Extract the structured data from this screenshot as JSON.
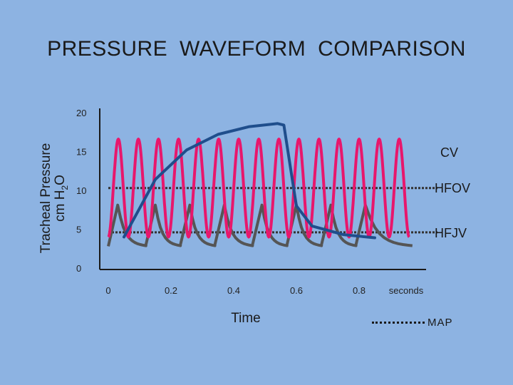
{
  "title": "PRESSURE  WAVEFORM  COMPARISON",
  "ylabel_line1": "Tracheal Pressure",
  "ylabel_line2_prefix": "cm  H",
  "ylabel_sub": "2",
  "ylabel_suffix": "O",
  "xlabel": "Time",
  "legend_map": "MAP",
  "colors": {
    "background": "#8db3e2",
    "cv": "#1f4e8c",
    "hfov": "#e8176c",
    "hfjv": "#555555",
    "map": "#333333"
  },
  "chart_data": {
    "type": "line",
    "title": "PRESSURE  WAVEFORM  COMPARISON",
    "xlabel": "Time",
    "ylabel": "Tracheal Pressure cm H2O",
    "x_ticks": [
      "0",
      "0.2",
      "0.4",
      "0.6",
      "0.8",
      "seconds"
    ],
    "y_ticks": [
      "0",
      "5",
      "10",
      "15",
      "20"
    ],
    "xlim": [
      0,
      1.0
    ],
    "ylim": [
      0,
      20
    ],
    "series": [
      {
        "name": "CV",
        "points": [
          [
            0.05,
            4.0
          ],
          [
            0.15,
            11.4
          ],
          [
            0.25,
            15.2
          ],
          [
            0.35,
            17.2
          ],
          [
            0.45,
            18.2
          ],
          [
            0.54,
            18.6
          ],
          [
            0.56,
            18.4
          ],
          [
            0.6,
            8.0
          ],
          [
            0.65,
            5.4
          ],
          [
            0.75,
            4.3
          ],
          [
            0.85,
            3.9
          ]
        ]
      },
      {
        "name": "HFOV",
        "mean": 10.3,
        "amplitude": 6.3,
        "cycles": 15,
        "x_range": [
          0,
          0.96
        ]
      },
      {
        "name": "HFJV",
        "baseline": 2.8,
        "peak": 8.1,
        "peak_times": [
          0.03,
          0.15,
          0.26,
          0.37,
          0.49,
          0.6,
          0.71,
          0.82
        ]
      },
      {
        "name": "MAP",
        "levels": [
          {
            "series": "HFOV",
            "y": 10.3,
            "x_range": [
              0,
              1.05
            ]
          },
          {
            "series": "HFJV",
            "y": 4.6,
            "x_range": [
              0,
              1.05
            ]
          }
        ]
      }
    ],
    "grid": false,
    "legend": "bottom-right"
  }
}
